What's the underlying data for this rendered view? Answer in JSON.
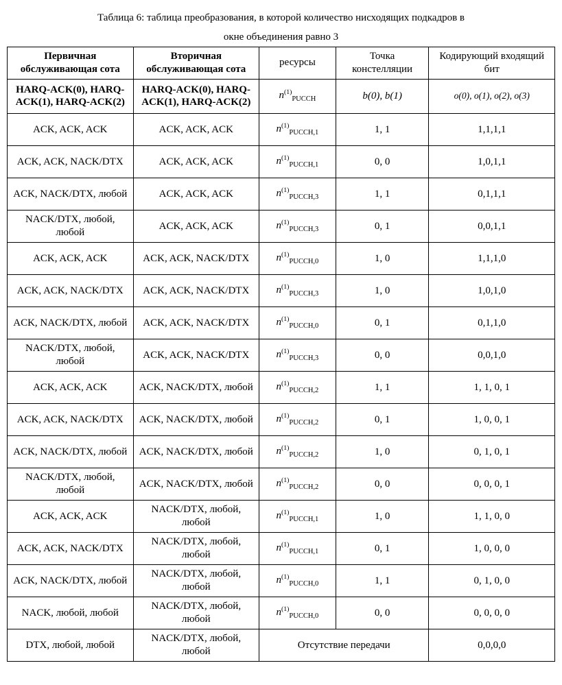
{
  "caption_line1": "Таблица 6: таблица преобразования, в которой количество нисходящих подкадров в",
  "caption_line2": "окне объединения равно 3",
  "headers": {
    "c1": "Первичная обслуживающая сота",
    "c2": "Вторичная обслуживающая сота",
    "c3": "ресурсы",
    "c4": "Точка констелляции",
    "c5": "Кодирующий входящий бит"
  },
  "subheader": {
    "c1": "HARQ-ACK(0), HARQ-ACK(1), HARQ-ACK(2)",
    "c2": "HARQ-ACK(0), HARQ-ACK(1), HARQ-ACK(2)",
    "c3_sub": "PUCCH",
    "c4": "b(0), b(1)",
    "c5": "o(0), o(1), o(2), o(3)"
  },
  "rows": [
    {
      "c1": "ACK, ACK, ACK",
      "c2": "ACK, ACK, ACK",
      "r": "PUCCH,1",
      "p": "1, 1",
      "b": "1,1,1,1"
    },
    {
      "c1": "ACK, ACK, NACK/DTX",
      "c2": "ACK, ACK, ACK",
      "r": "PUCCH,1",
      "p": "0, 0",
      "b": "1,0,1,1"
    },
    {
      "c1": "ACK, NACK/DTX, любой",
      "c2": "ACK, ACK, ACK",
      "r": "PUCCH,3",
      "p": "1, 1",
      "b": "0,1,1,1"
    },
    {
      "c1": "NACK/DTX, любой, любой",
      "c2": "ACK, ACK, ACK",
      "r": "PUCCH,3",
      "p": "0, 1",
      "b": "0,0,1,1"
    },
    {
      "c1": "ACK, ACK, ACK",
      "c2": "ACK, ACK, NACK/DTX",
      "r": "PUCCH,0",
      "p": "1, 0",
      "b": "1,1,1,0"
    },
    {
      "c1": "ACK, ACK, NACK/DTX",
      "c2": "ACK, ACK, NACK/DTX",
      "r": "PUCCH,3",
      "p": "1, 0",
      "b": "1,0,1,0"
    },
    {
      "c1": "ACK, NACK/DTX, любой",
      "c2": "ACK, ACK, NACK/DTX",
      "r": "PUCCH,0",
      "p": "0, 1",
      "b": "0,1,1,0"
    },
    {
      "c1": "NACK/DTX, любой, любой",
      "c2": "ACK, ACK, NACK/DTX",
      "r": "PUCCH,3",
      "p": "0, 0",
      "b": "0,0,1,0"
    },
    {
      "c1": "ACK, ACK, ACK",
      "c2": "ACK, NACK/DTX, любой",
      "r": "PUCCH,2",
      "p": "1, 1",
      "b": "1, 1, 0, 1"
    },
    {
      "c1": "ACK, ACK, NACK/DTX",
      "c2": "ACK, NACK/DTX, любой",
      "r": "PUCCH,2",
      "p": "0, 1",
      "b": "1, 0, 0, 1"
    },
    {
      "c1": "ACK, NACK/DTX, любой",
      "c2": "ACK, NACK/DTX, любой",
      "r": "PUCCH,2",
      "p": "1, 0",
      "b": "0, 1, 0, 1"
    },
    {
      "c1": "NACK/DTX, любой, любой",
      "c2": "ACK, NACK/DTX, любой",
      "r": "PUCCH,2",
      "p": "0, 0",
      "b": "0, 0, 0, 1"
    },
    {
      "c1": "ACK, ACK, ACK",
      "c2": "NACK/DTX, любой, любой",
      "r": "PUCCH,1",
      "p": "1, 0",
      "b": "1, 1, 0, 0"
    },
    {
      "c1": "ACK, ACK, NACK/DTX",
      "c2": "NACK/DTX, любой, любой",
      "r": "PUCCH,1",
      "p": "0, 1",
      "b": "1, 0, 0, 0"
    },
    {
      "c1": "ACK, NACK/DTX, любой",
      "c2": "NACK/DTX, любой, любой",
      "r": "PUCCH,0",
      "p": "1, 1",
      "b": "0, 1, 0, 0"
    },
    {
      "c1": "NACK, любой, любой",
      "c2": "NACK/DTX, любой, любой",
      "r": "PUCCH,0",
      "p": "0, 0",
      "b": "0, 0, 0, 0"
    },
    {
      "c1": "DTX, любой, любой",
      "c2": "NACK/DTX, любой, любой",
      "r": "__MERGE__",
      "p": "Отсутствие передачи",
      "b": "0,0,0,0"
    }
  ]
}
